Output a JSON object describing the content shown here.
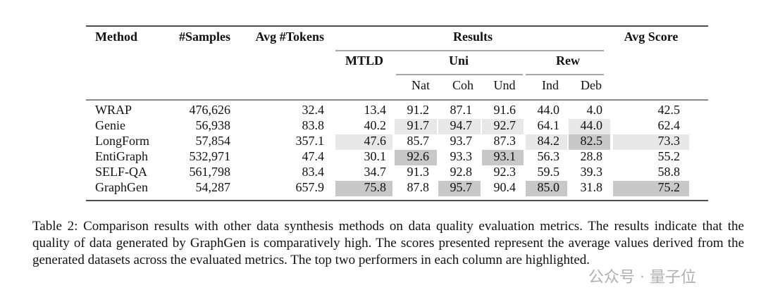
{
  "table": {
    "header": {
      "method": "Method",
      "samples": "#Samples",
      "tokens": "Avg #Tokens",
      "results": "Results",
      "avg_score": "Avg Score",
      "mtld": "MTLD",
      "uni": "Uni",
      "rew": "Rew",
      "sub": [
        "Nat",
        "Coh",
        "Und",
        "Ind",
        "Deb"
      ]
    },
    "rows": [
      [
        "WRAP",
        "476,626",
        "32.4",
        "13.4",
        "91.2",
        "87.1",
        "91.6",
        "44.0",
        "4.0",
        "42.5"
      ],
      [
        "Genie",
        "56,938",
        "83.8",
        "40.2",
        "91.7",
        "94.7",
        "92.7",
        "64.1",
        "44.0",
        "62.4"
      ],
      [
        "LongForm",
        "57,854",
        "357.1",
        "47.6",
        "85.7",
        "93.7",
        "87.3",
        "84.2",
        "82.5",
        "73.3"
      ],
      [
        "EntiGraph",
        "532,971",
        "47.4",
        "30.1",
        "92.6",
        "93.3",
        "93.1",
        "56.3",
        "28.8",
        "55.2"
      ],
      [
        "SELF-QA",
        "561,798",
        "83.4",
        "34.7",
        "91.3",
        "92.8",
        "92.3",
        "59.5",
        "39.3",
        "58.8"
      ],
      [
        "GraphGen",
        "54,287",
        "657.9",
        "75.8",
        "87.8",
        "95.7",
        "90.4",
        "85.0",
        "31.8",
        "75.2"
      ]
    ]
  },
  "caption": "Table 2: Comparison results with other data synthesis methods on data quality evaluation metrics. The results indicate that the quality of data generated by GraphGen is comparatively high. The scores presented represent the average values derived from the generated datasets across the evaluated metrics. The top two performers in each column are highlighted.",
  "watermark": "公众号 · 量子位"
}
